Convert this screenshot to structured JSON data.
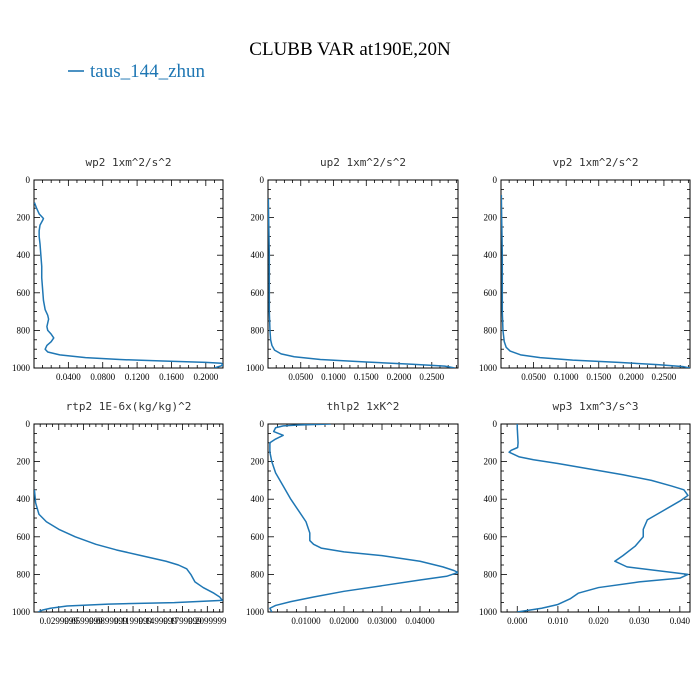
{
  "chart_data": {
    "type": "line",
    "title": "CLUBB VAR at190E,20N",
    "legend": {
      "entries": [
        "taus_144_zhun"
      ],
      "position": "top-left",
      "color": "#1f77b4"
    },
    "line_color": "#1f77b4",
    "panels": [
      {
        "id": "wp2",
        "title": "wp2   1xm^2/s^2",
        "xlim": [
          0.0,
          0.22
        ],
        "ylim": [
          1000,
          0
        ],
        "yticks": [
          "0",
          "200",
          "400",
          "600",
          "800",
          "1000"
        ],
        "xticks": [
          {
            "value": 0.04,
            "label": "0.0400"
          },
          {
            "value": 0.08,
            "label": "0.0800"
          },
          {
            "value": 0.12,
            "label": "0.1200"
          },
          {
            "value": 0.16,
            "label": "0.1600"
          },
          {
            "value": 0.2,
            "label": "0.2000"
          }
        ],
        "series": [
          {
            "points": [
              [
                0.0005,
                120
              ],
              [
                0.003,
                150
              ],
              [
                0.006,
                180
              ],
              [
                0.009,
                195
              ],
              [
                0.011,
                205
              ],
              [
                0.01,
                215
              ],
              [
                0.007,
                240
              ],
              [
                0.006,
                270
              ],
              [
                0.006,
                300
              ],
              [
                0.007,
                340
              ],
              [
                0.008,
                400
              ],
              [
                0.009,
                460
              ],
              [
                0.009,
                520
              ],
              [
                0.01,
                580
              ],
              [
                0.011,
                640
              ],
              [
                0.013,
                690
              ],
              [
                0.016,
                720
              ],
              [
                0.017,
                740
              ],
              [
                0.016,
                760
              ],
              [
                0.015,
                780
              ],
              [
                0.016,
                800
              ],
              [
                0.02,
                820
              ],
              [
                0.023,
                840
              ],
              [
                0.02,
                860
              ],
              [
                0.015,
                880
              ],
              [
                0.013,
                900
              ],
              [
                0.016,
                915
              ],
              [
                0.03,
                930
              ],
              [
                0.06,
                945
              ],
              [
                0.1,
                955
              ],
              [
                0.15,
                963
              ],
              [
                0.2,
                970
              ],
              [
                0.218,
                975
              ],
              [
                0.22,
                985
              ],
              [
                0.21,
                1000
              ]
            ]
          }
        ]
      },
      {
        "id": "up2",
        "title": "up2   1xm^2/s^2",
        "xlim": [
          0.0,
          0.29
        ],
        "ylim": [
          1000,
          0
        ],
        "yticks": [
          "0",
          "200",
          "400",
          "600",
          "800",
          "1000"
        ],
        "xticks": [
          {
            "value": 0.05,
            "label": "0.0500"
          },
          {
            "value": 0.1,
            "label": "0.1000"
          },
          {
            "value": 0.15,
            "label": "0.1500"
          },
          {
            "value": 0.2,
            "label": "0.2000"
          },
          {
            "value": 0.25,
            "label": "0.2500"
          }
        ],
        "series": [
          {
            "points": [
              [
                0.0005,
                100
              ],
              [
                0.001,
                200
              ],
              [
                0.0015,
                300
              ],
              [
                0.002,
                400
              ],
              [
                0.002,
                500
              ],
              [
                0.002,
                600
              ],
              [
                0.002,
                700
              ],
              [
                0.003,
                800
              ],
              [
                0.004,
                850
              ],
              [
                0.006,
                880
              ],
              [
                0.01,
                905
              ],
              [
                0.02,
                925
              ],
              [
                0.04,
                940
              ],
              [
                0.08,
                955
              ],
              [
                0.15,
                968
              ],
              [
                0.22,
                980
              ],
              [
                0.27,
                990
              ],
              [
                0.285,
                1000
              ]
            ]
          }
        ]
      },
      {
        "id": "vp2",
        "title": "vp2   1xm^2/s^2",
        "xlim": [
          0.0,
          0.29
        ],
        "ylim": [
          1000,
          0
        ],
        "yticks": [
          "0",
          "200",
          "400",
          "600",
          "800",
          "1000"
        ],
        "xticks": [
          {
            "value": 0.05,
            "label": "0.0500"
          },
          {
            "value": 0.1,
            "label": "0.1000"
          },
          {
            "value": 0.15,
            "label": "0.1500"
          },
          {
            "value": 0.2,
            "label": "0.2000"
          },
          {
            "value": 0.25,
            "label": "0.2500"
          }
        ],
        "series": [
          {
            "points": [
              [
                0.0005,
                80
              ],
              [
                0.001,
                200
              ],
              [
                0.0015,
                300
              ],
              [
                0.002,
                400
              ],
              [
                0.002,
                500
              ],
              [
                0.002,
                600
              ],
              [
                0.002,
                700
              ],
              [
                0.003,
                800
              ],
              [
                0.005,
                860
              ],
              [
                0.008,
                890
              ],
              [
                0.014,
                910
              ],
              [
                0.03,
                930
              ],
              [
                0.06,
                945
              ],
              [
                0.11,
                958
              ],
              [
                0.18,
                970
              ],
              [
                0.24,
                982
              ],
              [
                0.28,
                993
              ],
              [
                0.29,
                1000
              ]
            ]
          }
        ]
      },
      {
        "id": "rtp2",
        "title": "rtp2   1E-6x(kg/kg)^2",
        "xlim": [
          0.0,
          0.229
        ],
        "ylim": [
          1000,
          0
        ],
        "yticks": [
          "0",
          "200",
          "400",
          "600",
          "800",
          "1000"
        ],
        "xticks": [
          {
            "value": 0.0299999,
            "label": "0.0299999"
          },
          {
            "value": 0.0599999,
            "label": "0.0599999"
          },
          {
            "value": 0.0899999,
            "label": "0.0899999"
          },
          {
            "value": 0.1199999,
            "label": "0.1199999"
          },
          {
            "value": 0.1499999,
            "label": "0.1499999"
          },
          {
            "value": 0.1799999,
            "label": "0.1799999"
          },
          {
            "value": 0.2099999,
            "label": "0.2099999"
          }
        ],
        "series": [
          {
            "points": [
              [
                0.0005,
                350
              ],
              [
                0.002,
                420
              ],
              [
                0.006,
                480
              ],
              [
                0.015,
                520
              ],
              [
                0.03,
                560
              ],
              [
                0.05,
                600
              ],
              [
                0.075,
                640
              ],
              [
                0.1,
                670
              ],
              [
                0.13,
                700
              ],
              [
                0.16,
                730
              ],
              [
                0.175,
                750
              ],
              [
                0.185,
                770
              ],
              [
                0.19,
                800
              ],
              [
                0.195,
                840
              ],
              [
                0.205,
                870
              ],
              [
                0.218,
                900
              ],
              [
                0.225,
                920
              ],
              [
                0.228,
                938
              ],
              [
                0.17,
                950
              ],
              [
                0.09,
                958
              ],
              [
                0.04,
                968
              ],
              [
                0.02,
                980
              ],
              [
                0.01,
                990
              ],
              [
                0.005,
                1000
              ]
            ]
          }
        ]
      },
      {
        "id": "thlp2",
        "title": "thlp2   1xK^2",
        "xlim": [
          0.0,
          0.05
        ],
        "ylim": [
          1000,
          0
        ],
        "yticks": [
          "0",
          "200",
          "400",
          "600",
          "800",
          "1000"
        ],
        "xticks": [
          {
            "value": 0.01,
            "label": "0.01000"
          },
          {
            "value": 0.02,
            "label": "0.02000"
          },
          {
            "value": 0.03,
            "label": "0.03000"
          },
          {
            "value": 0.04,
            "label": "0.04000"
          }
        ],
        "series": [
          {
            "points": [
              [
                0.0165,
                0
              ],
              [
                0.008,
                5
              ],
              [
                0.004,
                10
              ],
              [
                0.002,
                20
              ],
              [
                0.0015,
                40
              ],
              [
                0.004,
                60
              ],
              [
                0.002,
                80
              ],
              [
                0.0005,
                100
              ],
              [
                0.0005,
                150
              ],
              [
                0.001,
                200
              ],
              [
                0.002,
                260
              ],
              [
                0.004,
                330
              ],
              [
                0.006,
                400
              ],
              [
                0.008,
                460
              ],
              [
                0.01,
                520
              ],
              [
                0.011,
                580
              ],
              [
                0.011,
                620
              ],
              [
                0.012,
                640
              ],
              [
                0.014,
                660
              ],
              [
                0.02,
                680
              ],
              [
                0.03,
                700
              ],
              [
                0.04,
                730
              ],
              [
                0.046,
                760
              ],
              [
                0.049,
                780
              ],
              [
                0.05,
                790
              ],
              [
                0.047,
                810
              ],
              [
                0.04,
                830
              ],
              [
                0.03,
                860
              ],
              [
                0.02,
                890
              ],
              [
                0.012,
                920
              ],
              [
                0.006,
                945
              ],
              [
                0.002,
                965
              ],
              [
                0.0005,
                980
              ],
              [
                0.001,
                1000
              ]
            ]
          }
        ]
      },
      {
        "id": "wp3",
        "title": "wp3   1xm^3/s^3",
        "xlim": [
          -0.004,
          0.0425
        ],
        "ylim": [
          1000,
          0
        ],
        "yticks": [
          "0",
          "200",
          "400",
          "600",
          "800",
          "1000"
        ],
        "xticks": [
          {
            "value": 0.0,
            "label": "0.000"
          },
          {
            "value": 0.01,
            "label": "0.010"
          },
          {
            "value": 0.02,
            "label": "0.020"
          },
          {
            "value": 0.03,
            "label": "0.030"
          },
          {
            "value": 0.04,
            "label": "0.040"
          }
        ],
        "series": [
          {
            "points": [
              [
                0.0,
                0
              ],
              [
                0.0,
                20
              ],
              [
                0.0001,
                60
              ],
              [
                0.0002,
                100
              ],
              [
                0.0001,
                125
              ],
              [
                -0.0015,
                140
              ],
              [
                -0.002,
                150
              ],
              [
                -0.001,
                160
              ],
              [
                0.0005,
                175
              ],
              [
                0.004,
                190
              ],
              [
                0.01,
                210
              ],
              [
                0.018,
                240
              ],
              [
                0.026,
                270
              ],
              [
                0.033,
                300
              ],
              [
                0.038,
                330
              ],
              [
                0.041,
                350
              ],
              [
                0.042,
                380
              ],
              [
                0.04,
                410
              ],
              [
                0.036,
                460
              ],
              [
                0.032,
                510
              ],
              [
                0.031,
                560
              ],
              [
                0.031,
                600
              ],
              [
                0.029,
                650
              ],
              [
                0.026,
                700
              ],
              [
                0.024,
                730
              ],
              [
                0.027,
                760
              ],
              [
                0.042,
                800
              ],
              [
                0.04,
                820
              ],
              [
                0.03,
                840
              ],
              [
                0.02,
                870
              ],
              [
                0.015,
                900
              ],
              [
                0.013,
                930
              ],
              [
                0.01,
                960
              ],
              [
                0.006,
                980
              ],
              [
                0.003,
                990
              ],
              [
                0.0,
                1000
              ]
            ]
          }
        ]
      }
    ]
  }
}
